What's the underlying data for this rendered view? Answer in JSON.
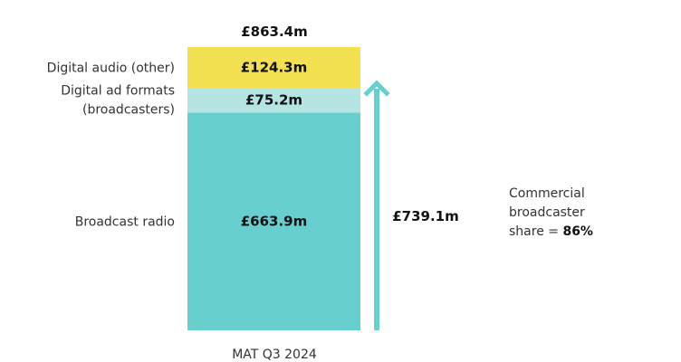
{
  "chart_data": {
    "type": "bar",
    "categories": [
      "MAT Q3 2024"
    ],
    "stacked": true,
    "total_label": "£863.4m",
    "total": 863.4,
    "series": [
      {
        "name": "Broadcast radio",
        "value": 663.9,
        "label": "£663.9m",
        "color": "#67cfce"
      },
      {
        "name": "Digital ad formats (broadcasters)",
        "value": 75.2,
        "label": "£75.2m",
        "color": "#b4e5e2"
      },
      {
        "name": "Digital audio (other)",
        "value": 124.3,
        "label": "£124.3m",
        "color": "#f3e151"
      }
    ],
    "arrow": {
      "value": 739.1,
      "label": "£739.1m",
      "color": "#67cfce"
    },
    "annotation": {
      "line1": "Commercial",
      "line2": "broadcaster",
      "line3_prefix": "share = ",
      "line3_value": "86%"
    }
  }
}
